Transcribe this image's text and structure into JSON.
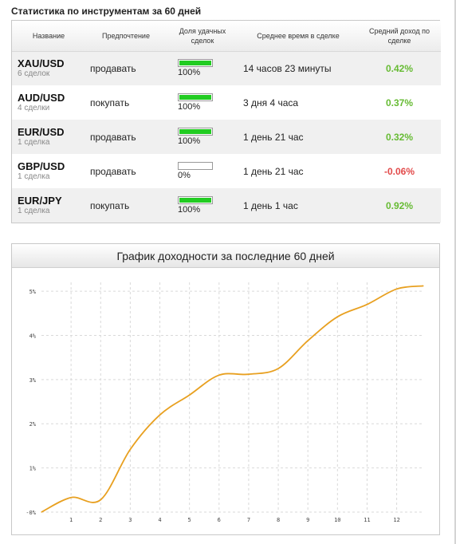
{
  "stats": {
    "title": "Статистика по инструментам за 60 дней",
    "headers": {
      "name": "Название",
      "preference": "Предпочтение",
      "share": "Доля удачных сделок",
      "avg_time": "Среднее время в сделке",
      "avg_income": "Средний доход по сделке"
    },
    "rows": [
      {
        "pair": "XAU/USD",
        "deals": "6 сделок",
        "preference": "продавать",
        "share": 1.0,
        "share_label": "100%",
        "avg_time": "14 часов 23 минуты",
        "avg_income": "0.42%",
        "sign": "pos"
      },
      {
        "pair": "AUD/USD",
        "deals": "4 сделки",
        "preference": "покупать",
        "share": 1.0,
        "share_label": "100%",
        "avg_time": "3 дня 4 часа",
        "avg_income": "0.37%",
        "sign": "pos"
      },
      {
        "pair": "EUR/USD",
        "deals": "1 сделка",
        "preference": "продавать",
        "share": 1.0,
        "share_label": "100%",
        "avg_time": "1 день 21 час",
        "avg_income": "0.32%",
        "sign": "pos"
      },
      {
        "pair": "GBP/USD",
        "deals": "1 сделка",
        "preference": "продавать",
        "share": 0.0,
        "share_label": "0%",
        "avg_time": "1 день 21 час",
        "avg_income": "-0.06%",
        "sign": "neg"
      },
      {
        "pair": "EUR/JPY",
        "deals": "1 сделка",
        "preference": "покупать",
        "share": 1.0,
        "share_label": "100%",
        "avg_time": "1 день 1 час",
        "avg_income": "0.92%",
        "sign": "pos"
      }
    ],
    "colors": {
      "bar_fill": "#22cc22",
      "positive": "#66bb33",
      "negative": "#e24a4a"
    }
  },
  "chart": {
    "title": "График доходности за последние 60 дней"
  },
  "chart_data": {
    "type": "line",
    "title": "График доходности за последние 60 дней",
    "xlabel": "",
    "ylabel": "",
    "x_ticks": [
      "1",
      "2",
      "3",
      "4",
      "5",
      "6",
      "7",
      "8",
      "9",
      "10",
      "11",
      "12"
    ],
    "y_ticks": [
      "-0%",
      "1%",
      "2%",
      "3%",
      "4%",
      "5%"
    ],
    "xlim": [
      0,
      12.9
    ],
    "ylim": [
      0,
      5.2
    ],
    "grid": true,
    "series": [
      {
        "color": "#e8a020",
        "x": [
          0,
          1,
          2,
          3,
          4,
          5,
          6,
          7,
          8,
          9,
          10,
          11,
          12,
          12.9
        ],
        "y": [
          0.0,
          0.33,
          0.28,
          1.42,
          2.2,
          2.65,
          3.1,
          3.12,
          3.25,
          3.88,
          4.42,
          4.7,
          5.05,
          5.12
        ]
      }
    ]
  }
}
